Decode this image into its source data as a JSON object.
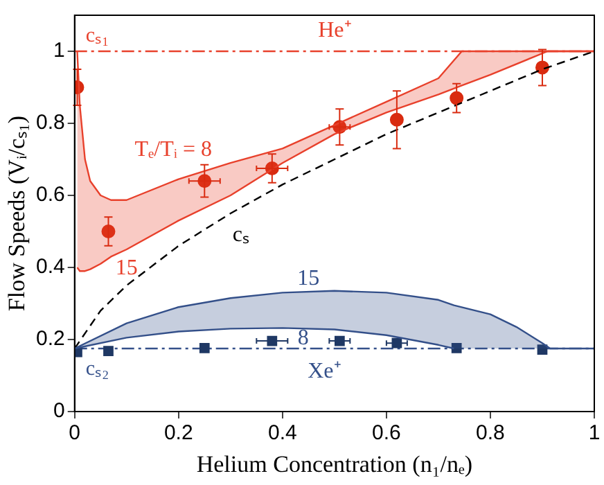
{
  "chart_data": {
    "type": "line",
    "xlabel": "Helium Concentration (n₁/nₑ)",
    "ylabel": "Flow Speeds (Vᵢ/cₛ₁)",
    "xlim": [
      0,
      1
    ],
    "ylim": [
      0,
      1.1
    ],
    "xticks": [
      0,
      0.2,
      0.4,
      0.6,
      0.8,
      1
    ],
    "yticks": [
      0,
      0.2,
      0.4,
      0.6,
      0.8,
      1
    ],
    "grid": false,
    "legend": false,
    "series": [
      {
        "color": "#e8412c",
        "x": [
          0.005,
          0.01,
          0.02,
          0.03,
          0.05,
          0.07,
          0.1,
          0.2,
          0.3,
          0.4,
          0.5,
          0.6,
          0.7,
          0.745,
          0.8,
          0.91,
          1
        ],
        "values": [
          1.0,
          0.85,
          0.7,
          0.64,
          0.6,
          0.587,
          0.587,
          0.645,
          0.69,
          0.73,
          0.795,
          0.86,
          0.925,
          1.0,
          1.0,
          1.0,
          1.0
        ],
        "upper": [
          1.0,
          0.85,
          0.7,
          0.64,
          0.6,
          0.587,
          0.587,
          0.645,
          0.69,
          0.73,
          0.795,
          0.86,
          0.925,
          1.0,
          1.0,
          1.0,
          1.0
        ],
        "lower": [
          0.4,
          0.39,
          0.39,
          0.395,
          0.41,
          0.43,
          0.45,
          0.53,
          0.6,
          0.69,
          0.77,
          0.83,
          0.88,
          0.905,
          0.935,
          1.0,
          1.0
        ]
      },
      {
        "color": "#34508a",
        "x": [
          0,
          0.1,
          0.2,
          0.3,
          0.4,
          0.5,
          0.6,
          0.7,
          0.73,
          0.8,
          0.85,
          0.9,
          0.915,
          1
        ],
        "values": [
          0.175,
          0.245,
          0.29,
          0.315,
          0.33,
          0.335,
          0.33,
          0.31,
          0.295,
          0.27,
          0.235,
          0.19,
          0.175,
          0.175
        ],
        "upper": [
          0.175,
          0.245,
          0.29,
          0.315,
          0.33,
          0.335,
          0.33,
          0.31,
          0.295,
          0.27,
          0.235,
          0.19,
          0.175,
          0.175
        ],
        "lower": [
          0.175,
          0.205,
          0.222,
          0.23,
          0.232,
          0.228,
          0.212,
          0.185,
          0.175,
          0.175,
          0.175,
          0.175,
          0.175,
          0.175
        ]
      },
      {
        "color": "#e8412c",
        "x": [
          0.005,
          0.01,
          0.02,
          0.03,
          0.05,
          0.07,
          0.1,
          0.2,
          0.3,
          0.4,
          0.5,
          0.6,
          0.7,
          0.745,
          0.8,
          0.91,
          1
        ],
        "values": [
          0.4,
          0.39,
          0.39,
          0.395,
          0.41,
          0.43,
          0.45,
          0.53,
          0.6,
          0.69,
          0.77,
          0.83,
          0.88,
          0.905,
          0.935,
          1.0,
          1.0
        ]
      },
      {
        "color": "#34508a",
        "x": [
          0,
          0.1,
          0.2,
          0.3,
          0.4,
          0.5,
          0.6,
          0.7,
          0.73
        ],
        "values": [
          0.175,
          0.205,
          0.222,
          0.23,
          0.232,
          0.228,
          0.212,
          0.185,
          0.175
        ]
      },
      {
        "color": "#000000",
        "line_style": "dashed",
        "x": [
          0,
          0.05,
          0.1,
          0.2,
          0.3,
          0.4,
          0.5,
          0.6,
          0.7,
          0.8,
          0.9,
          1
        ],
        "values": [
          0.175,
          0.28,
          0.35,
          0.46,
          0.55,
          0.63,
          0.7,
          0.77,
          0.83,
          0.89,
          0.95,
          1.0
        ]
      },
      {
        "type": "scatter",
        "color": "#d92b10",
        "marker": "circle",
        "x": [
          0.005,
          0.065,
          0.25,
          0.38,
          0.51,
          0.62,
          0.735,
          0.9
        ],
        "values": [
          0.9,
          0.5,
          0.64,
          0.675,
          0.79,
          0.81,
          0.87,
          0.955
        ],
        "errors": [
          0.05,
          0.04,
          0.045,
          0.04,
          0.05,
          0.08,
          0.04,
          0.05
        ],
        "xerrors": [
          null,
          null,
          0.03,
          0.03,
          0.02,
          null,
          null,
          null
        ]
      },
      {
        "type": "scatter",
        "color": "#1f3864",
        "marker": "square",
        "x": [
          0.005,
          0.065,
          0.25,
          0.38,
          0.51,
          0.62,
          0.735,
          0.9
        ],
        "values": [
          0.165,
          0.168,
          0.176,
          0.196,
          0.196,
          0.19,
          0.176,
          0.172
        ],
        "xerrors": [
          null,
          null,
          null,
          0.03,
          0.02,
          0.02,
          null,
          null
        ]
      }
    ],
    "ref_lines": [
      {
        "axis": "y",
        "value": 1,
        "label": "cₛ₁",
        "color": "#e8412c",
        "line_style": "dashdot"
      },
      {
        "axis": "y",
        "value": 0.175,
        "label": "cₛ₂",
        "color": "#34508a",
        "line_style": "dashdot"
      }
    ],
    "annotations": [
      "He⁺",
      "Xe⁺",
      "Tₑ/Tᵢ = 8",
      "15",
      "cₛ",
      "15",
      "8"
    ]
  }
}
